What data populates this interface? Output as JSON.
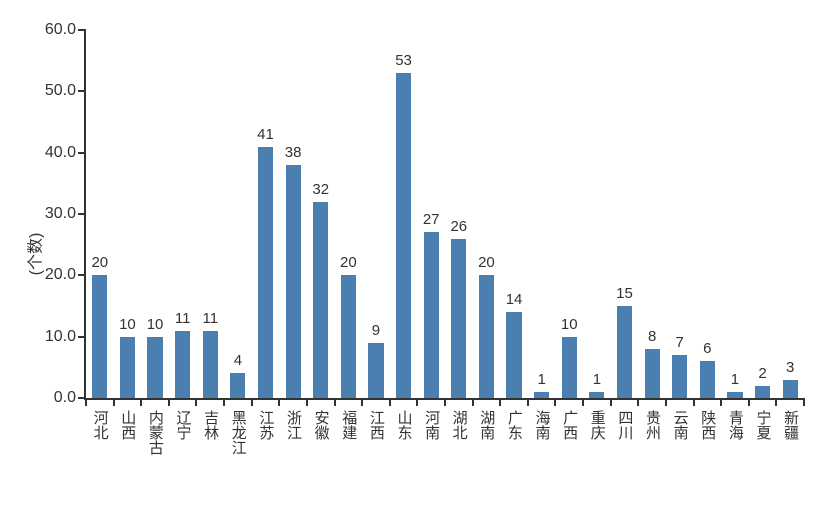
{
  "chart": {
    "type": "bar",
    "y_axis_title": "(个数)",
    "background_color": "#ffffff",
    "axis_color": "#333333",
    "label_color": "#333333",
    "bar_color": "#4a7fb0",
    "label_fontsize": 16,
    "value_fontsize": 15,
    "category_fontsize": 15,
    "ylim": [
      0,
      60
    ],
    "ytick_step": 10,
    "ytick_decimals": 1,
    "bar_width_ratio": 0.55,
    "categories": [
      "河北",
      "山西",
      "内蒙古",
      "辽宁",
      "吉林",
      "黑龙江",
      "江苏",
      "浙江",
      "安徽",
      "福建",
      "江西",
      "山东",
      "河南",
      "湖北",
      "湖南",
      "广东",
      "海南",
      "广西",
      "重庆",
      "四川",
      "贵州",
      "云南",
      "陕西",
      "青海",
      "宁夏",
      "新疆"
    ],
    "values": [
      20,
      10,
      10,
      11,
      11,
      4,
      41,
      38,
      32,
      20,
      9,
      53,
      27,
      26,
      20,
      14,
      1,
      10,
      1,
      15,
      8,
      7,
      6,
      1,
      2,
      3
    ]
  }
}
